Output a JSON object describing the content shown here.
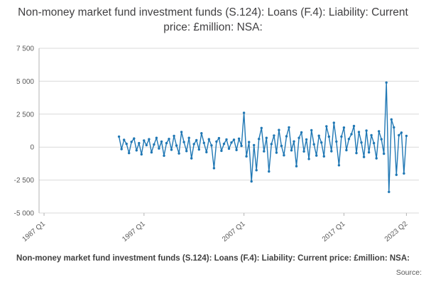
{
  "title": "Non-money market fund investment funds (S.124): Loans (F.4): Liability: Current price: £million: NSA:",
  "footer": {
    "series_label": "Non-money market fund investment funds (S.124): Loans (F.4): Liability: Current price: £million: NSA:",
    "source_label": "Source:"
  },
  "chart_data": {
    "type": "line",
    "title": "Non-money market fund investment funds (S.124): Loans (F.4): Liability: Current price: £million: NSA:",
    "xlabel": "",
    "ylabel": "",
    "legend": "none",
    "grid": "horizontal",
    "series_color": "#1f77b4",
    "grid_color": "#d9d9d9",
    "axis_color": "#b3b3b3",
    "xlim": [
      1986.5,
      2024.5
    ],
    "ylim": [
      -5000,
      7500
    ],
    "y_ticks": [
      {
        "value": 7500,
        "label": "7 500"
      },
      {
        "value": 5000,
        "label": "5 000"
      },
      {
        "value": 2500,
        "label": "2 500"
      },
      {
        "value": 0,
        "label": "0"
      },
      {
        "value": -2500,
        "label": "-2 500"
      },
      {
        "value": -5000,
        "label": "-5 000"
      }
    ],
    "x_ticks": [
      {
        "value": 1987,
        "label": "1987 Q1"
      },
      {
        "value": 1997,
        "label": "1997 Q1"
      },
      {
        "value": 2007,
        "label": "2007 Q1"
      },
      {
        "value": 2017,
        "label": "2017 Q1"
      },
      {
        "value": 2023.25,
        "label": "2023 Q2"
      }
    ],
    "x_start": 1994.5,
    "x_step": 0.25,
    "x_unit": "decimal year (quarterly)",
    "y_unit": "£million",
    "values": [
      800,
      -150,
      550,
      250,
      -450,
      400,
      650,
      -250,
      300,
      -550,
      500,
      150,
      600,
      -400,
      200,
      700,
      -100,
      420,
      -650,
      300,
      620,
      -200,
      850,
      120,
      -480,
      1150,
      380,
      -300,
      700,
      -850,
      230,
      520,
      -180,
      1050,
      320,
      -380,
      600,
      130,
      -1600,
      420,
      680,
      -280,
      250,
      580,
      -120,
      350,
      560,
      -220,
      640,
      90,
      2600,
      -700,
      380,
      -2600,
      150,
      -1750,
      620,
      1450,
      -320,
      700,
      -1850,
      230,
      880,
      -420,
      1300,
      90,
      -620,
      820,
      1500,
      -250,
      430,
      -1450,
      700,
      1120,
      -330,
      580,
      -900,
      1280,
      210,
      -640,
      860,
      350,
      -700,
      1580,
      790,
      -310,
      1850,
      420,
      -1380,
      800,
      1480,
      -230,
      620,
      980,
      1600,
      -450,
      1150,
      350,
      -750,
      1250,
      -400,
      900,
      300,
      -850,
      1200,
      600,
      -500,
      4900,
      -3400,
      2100,
      1500,
      -2100,
      900,
      1100,
      -2000,
      850
    ]
  }
}
